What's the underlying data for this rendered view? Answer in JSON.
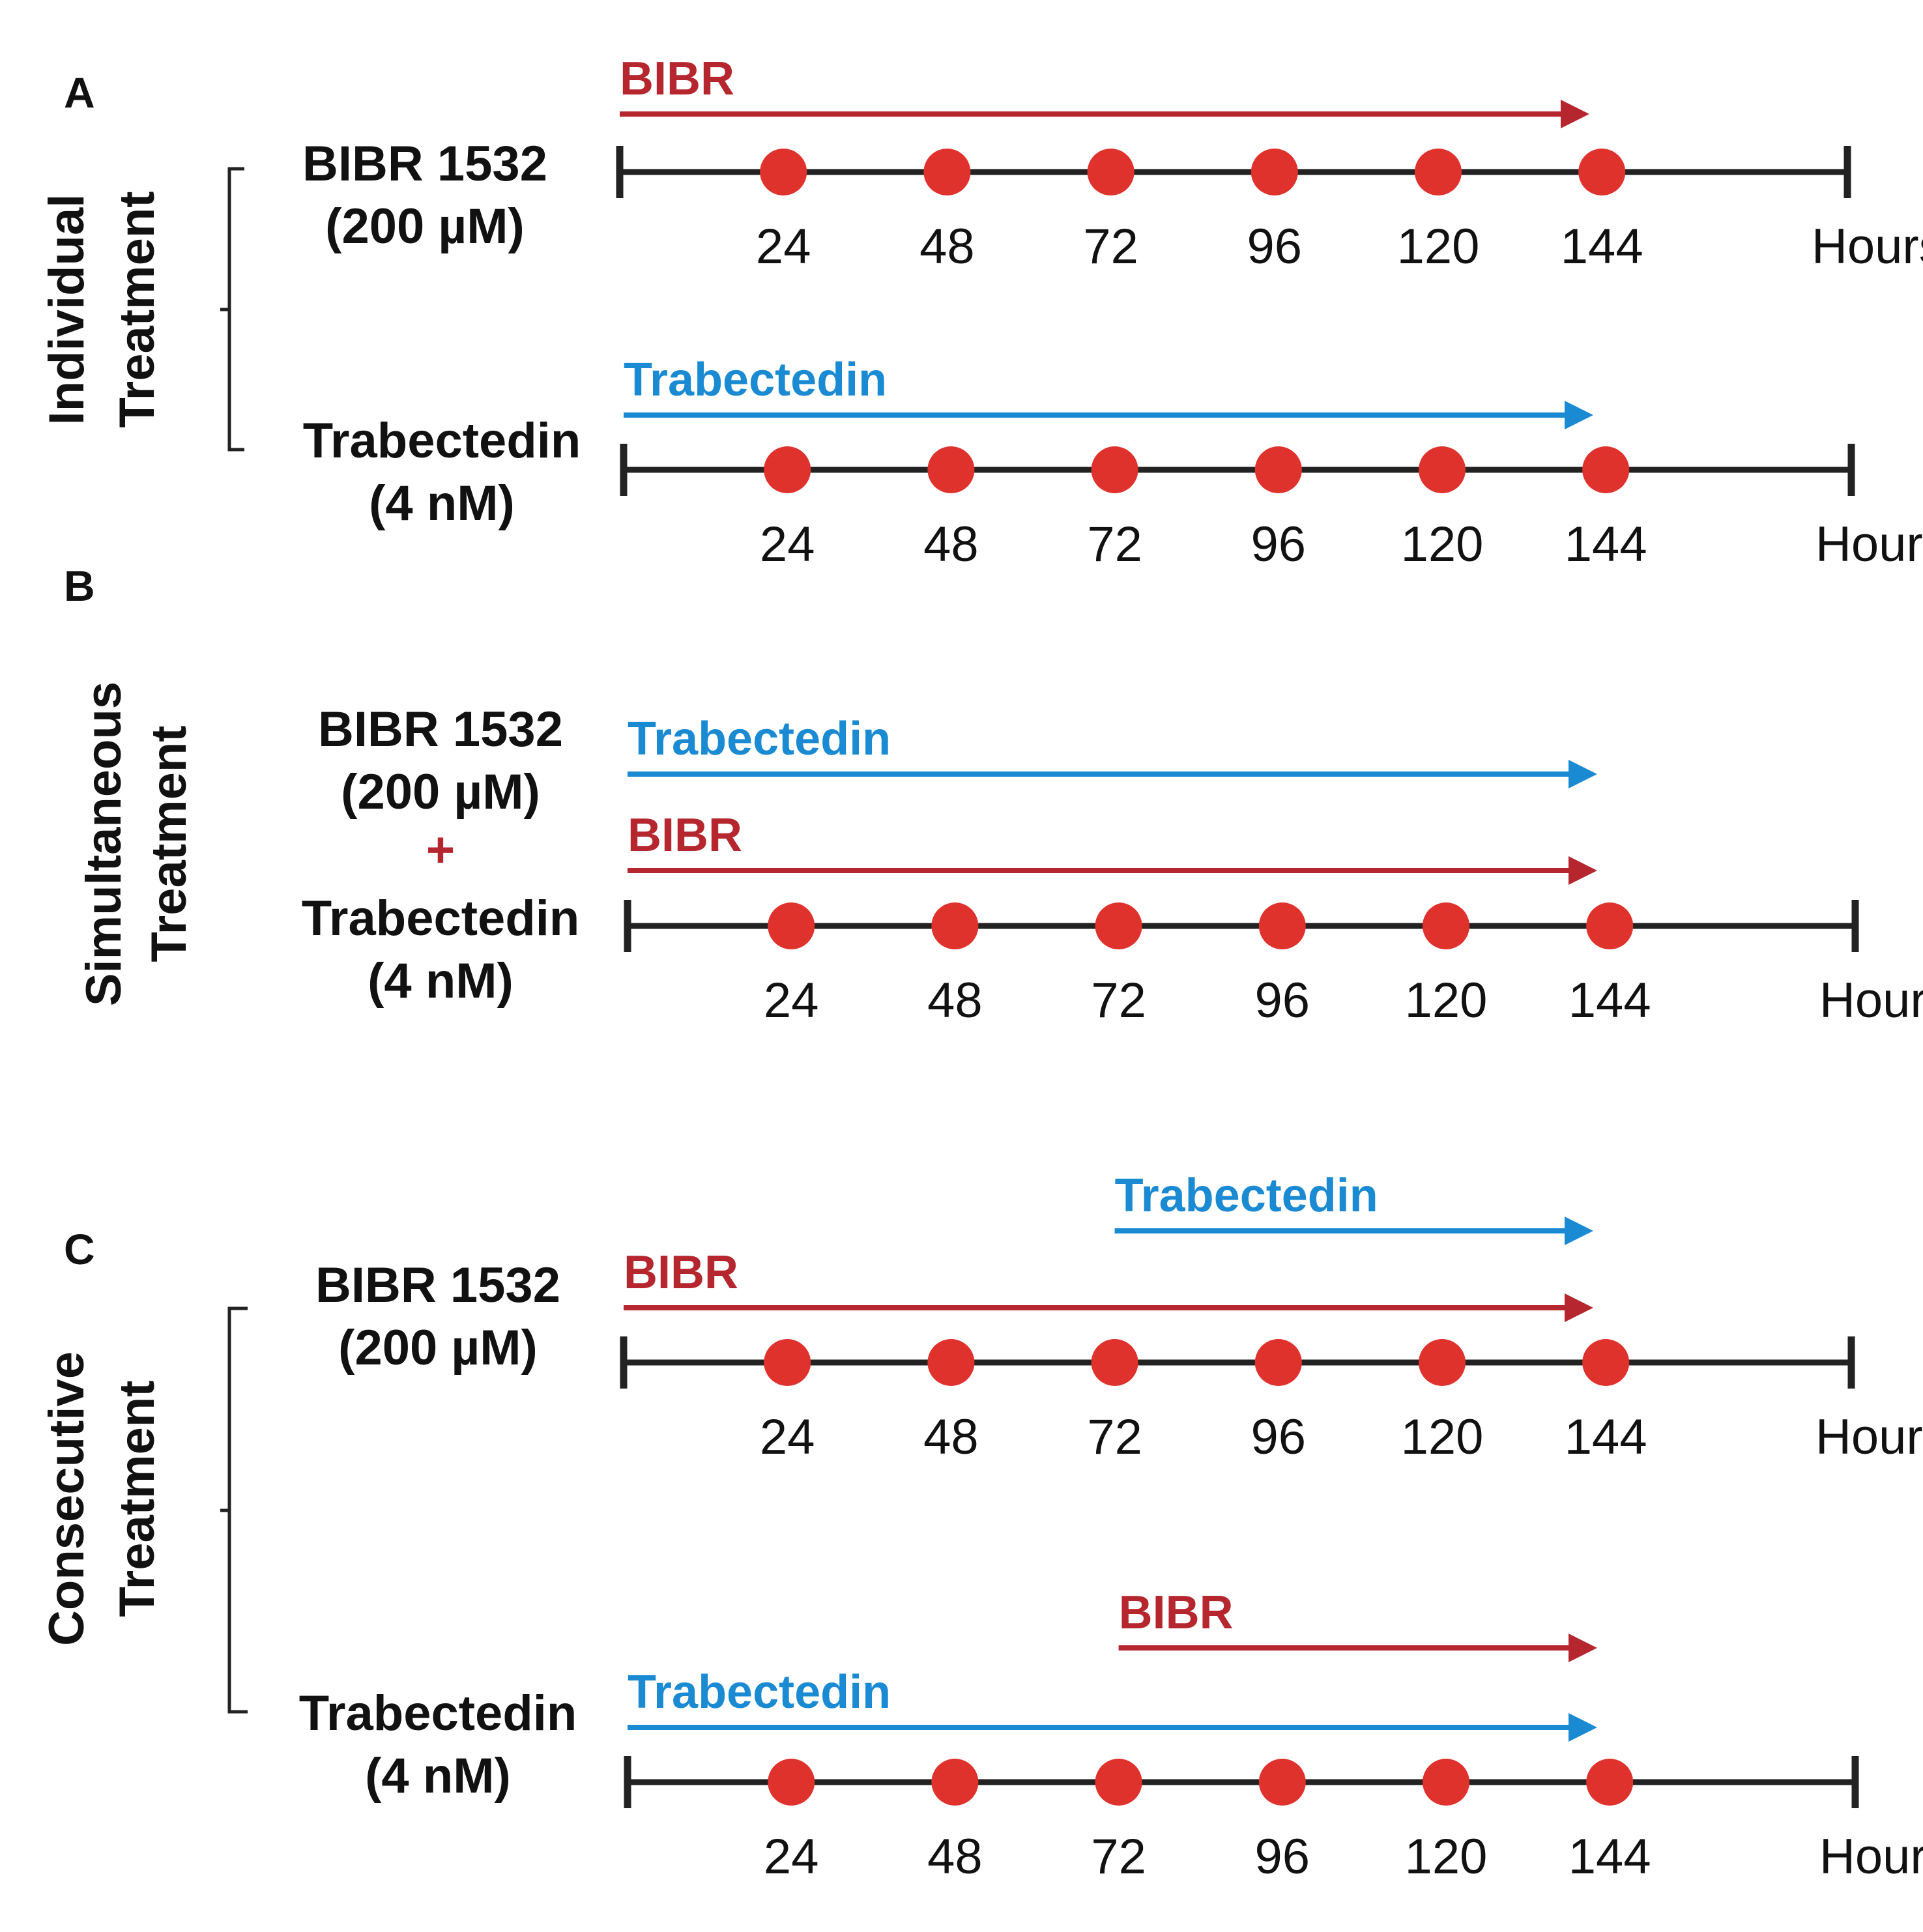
{
  "colors": {
    "bibr": "#b5262e",
    "trabectedin": "#1a8ad2",
    "timepoint": "#e0322d",
    "axis": "#222222",
    "text": "#111111"
  },
  "units_label": "Hours",
  "timepoints": [
    24,
    48,
    72,
    96,
    120,
    144
  ],
  "axis_range_hours": [
    0,
    180
  ],
  "panels": [
    {
      "letter": "A",
      "group_label": [
        "Individual",
        "Treatment"
      ],
      "rows": [
        {
          "drug_lines": [
            "BIBR 1532",
            "(200 µM)"
          ],
          "arrows": [
            {
              "label": "BIBR",
              "drug": "bibr",
              "start": 0,
              "end": 144
            }
          ]
        },
        {
          "drug_lines": [
            "Trabectedin",
            "(4 nM)"
          ],
          "arrows": [
            {
              "label": "Trabectedin",
              "drug": "trabectedin",
              "start": 0,
              "end": 144
            }
          ]
        }
      ]
    },
    {
      "letter": "B",
      "group_label": [
        "Simultaneous",
        "Treatment"
      ],
      "rows": [
        {
          "drug_lines": [
            "BIBR 1532",
            "(200 µM)",
            "+",
            "Trabectedin",
            "(4 nM)"
          ],
          "arrows": [
            {
              "label": "Trabectedin",
              "drug": "trabectedin",
              "start": 0,
              "end": 144
            },
            {
              "label": "BIBR",
              "drug": "bibr",
              "start": 0,
              "end": 144
            }
          ]
        }
      ]
    },
    {
      "letter": "C",
      "group_label": [
        "Consecutive",
        "Treatment"
      ],
      "rows": [
        {
          "drug_lines": [
            "BIBR 1532",
            "(200 µM)"
          ],
          "arrows": [
            {
              "label": "Trabectedin",
              "drug": "trabectedin",
              "start": 72,
              "end": 144
            },
            {
              "label": "BIBR",
              "drug": "bibr",
              "start": 0,
              "end": 144
            }
          ]
        },
        {
          "drug_lines": [
            "Trabectedin",
            "(4 nM)"
          ],
          "arrows": [
            {
              "label": "BIBR",
              "drug": "bibr",
              "start": 72,
              "end": 144
            },
            {
              "label": "Trabectedin",
              "drug": "trabectedin",
              "start": 0,
              "end": 144
            }
          ]
        }
      ]
    }
  ]
}
